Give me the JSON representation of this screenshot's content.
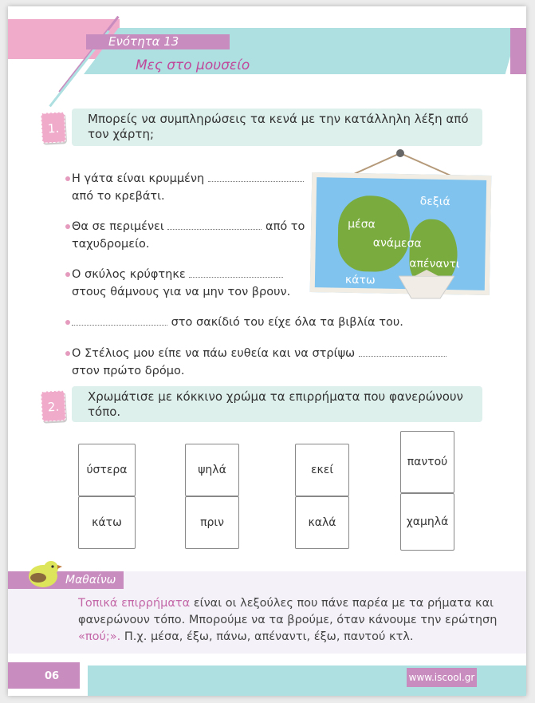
{
  "header": {
    "unit": "Ενότητα 13",
    "title": "Μες στο μουσείο"
  },
  "exercise1": {
    "number": "1.",
    "prompt": "Μπορείς να συμπληρώσεις τα κενά με την κατάλληλη λέξη από τον χάρτη;",
    "items": [
      {
        "before": "Η γάτα είναι κρυμμένη",
        "after": "",
        "line2": "από το κρεβάτι."
      },
      {
        "before": "Θα σε περιμένει",
        "after": "από το",
        "line2": "ταχυδρομείο."
      },
      {
        "before": "Ο σκύλος κρύφτηκε",
        "after": "",
        "line2": "στους θάμνους για να μην τον βρουν."
      },
      {
        "before": "",
        "after": "στο σακίδιό του είχε όλα τα βιβλία του.",
        "line2": ""
      },
      {
        "before": "Ο Στέλιος μου είπε να πάω ευθεία και να στρίψω",
        "after": "",
        "line2": "στον πρώτο δρόμο."
      }
    ],
    "map_words": [
      "δεξιά",
      "μέσα",
      "ανάμεσα",
      "απέναντι",
      "κάτω"
    ]
  },
  "exercise2": {
    "number": "2.",
    "prompt": "Χρωμάτισε με κόκκινο χρώμα τα επιρρήματα που φανερώνουν τόπο.",
    "pieces": [
      [
        "ύστερα",
        "κάτω"
      ],
      [
        "ψηλά",
        "πριν"
      ],
      [
        "εκεί",
        "καλά"
      ],
      [
        "παντού",
        "χαμηλά"
      ]
    ]
  },
  "learn": {
    "label": "Μαθαίνω",
    "highlight1": "Τοπικά επιρρήματα",
    "text1": " είναι οι λεξούλες που πάνε παρέα με τα ρήματα και φανερώνουν τόπο. Μπορούμε να τα βρούμε, όταν κάνουμε την ερώτηση ",
    "highlight2": "«πού;».",
    "text2": "  Π.χ. μέσα, έξω, πάνω, απέναντι, έξω, παντού κτλ."
  },
  "footer": {
    "page": "06",
    "site": "www.iscool.gr"
  },
  "colors": {
    "pink": "#f0abcb",
    "teal": "#aedfe1",
    "purple": "#c98cbf",
    "title": "#c0479a"
  }
}
